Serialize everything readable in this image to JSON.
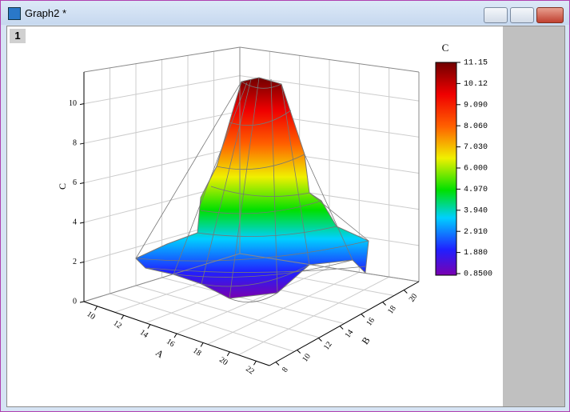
{
  "window": {
    "title": "Graph2 *",
    "layer": "1"
  },
  "plot": {
    "z_axis": {
      "label": "C",
      "ticks": [
        "0",
        "2",
        "4",
        "6",
        "8",
        "10"
      ]
    },
    "x_axis": {
      "label": "A",
      "ticks": [
        "10",
        "12",
        "14",
        "16",
        "18",
        "20",
        "22"
      ]
    },
    "y_axis": {
      "label": "B",
      "ticks": [
        "8",
        "10",
        "12",
        "14",
        "16",
        "18",
        "20"
      ]
    }
  },
  "colorbar": {
    "title": "C",
    "labels": [
      "11.15",
      "10.12",
      "9.090",
      "8.060",
      "7.030",
      "6.000",
      "4.970",
      "3.940",
      "2.910",
      "1.880",
      "0.8500"
    ]
  }
}
